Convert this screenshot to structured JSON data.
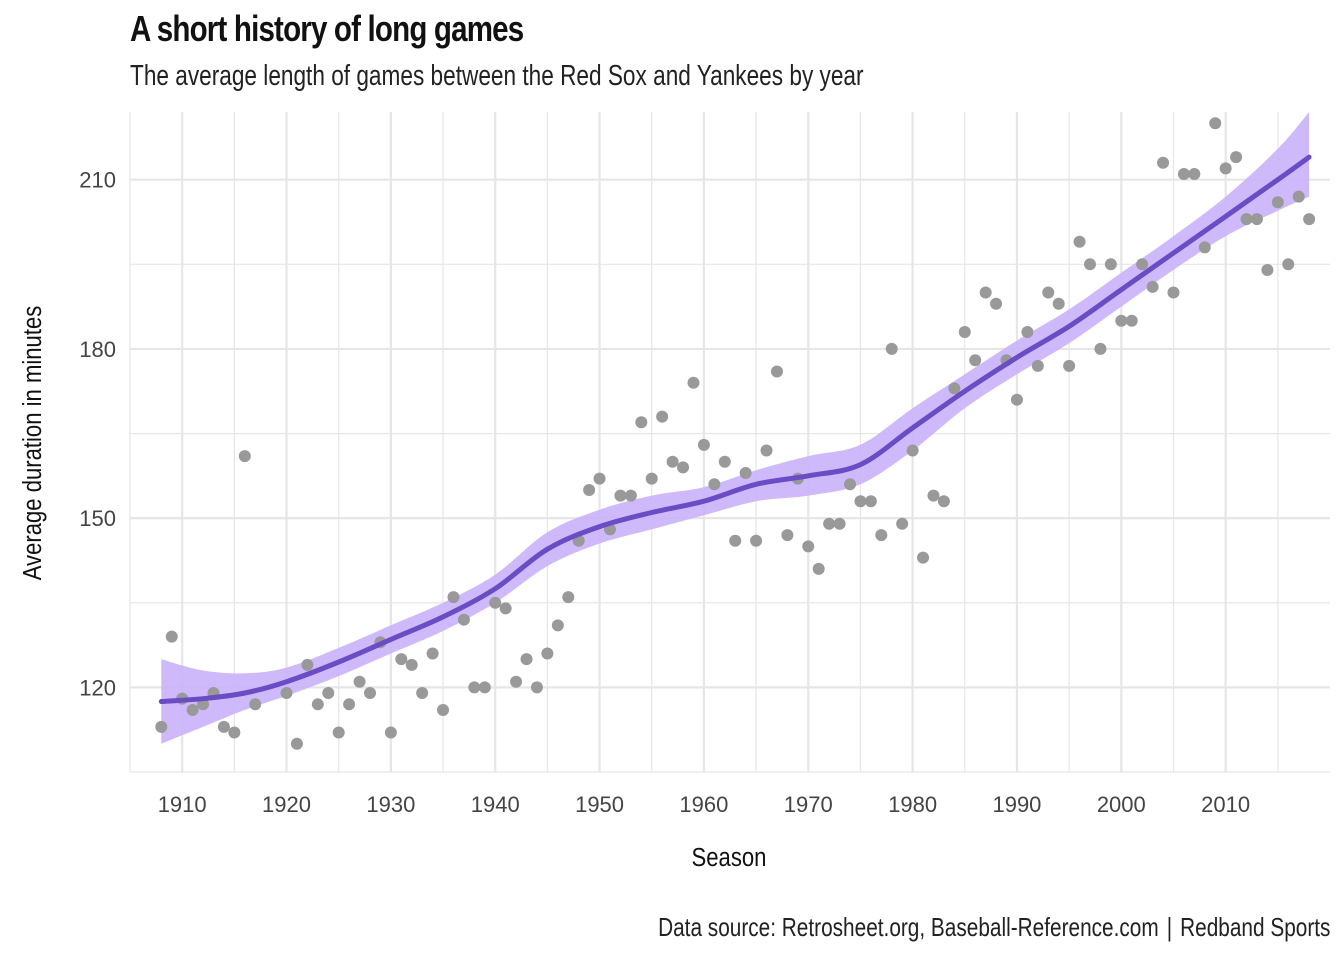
{
  "chart_data": {
    "type": "scatter",
    "title": "A short history of long games",
    "subtitle": "The average length of games between the Red Sox and Yankees by year",
    "xlabel": "Season",
    "ylabel": "Average duration in minutes",
    "caption_source": "Data source: Retrosheet.org, Baseball-Reference.com",
    "caption_separator": "|",
    "caption_brand": "Redband Sports",
    "xlim": [
      1905,
      2020
    ],
    "ylim": [
      105,
      222
    ],
    "x_ticks": [
      1910,
      1920,
      1930,
      1940,
      1950,
      1960,
      1970,
      1980,
      1990,
      2000,
      2010
    ],
    "y_ticks": [
      120,
      150,
      180,
      210
    ],
    "grid": true,
    "colors": {
      "points": "#999999",
      "trend_line": "#6a4cc4",
      "confidence_band": "#c9b3fb",
      "grid": "#e6e6e6"
    },
    "points": [
      {
        "x": 1908,
        "y": 113
      },
      {
        "x": 1909,
        "y": 129
      },
      {
        "x": 1910,
        "y": 118
      },
      {
        "x": 1911,
        "y": 116
      },
      {
        "x": 1912,
        "y": 117
      },
      {
        "x": 1913,
        "y": 119
      },
      {
        "x": 1914,
        "y": 113
      },
      {
        "x": 1915,
        "y": 112
      },
      {
        "x": 1916,
        "y": 161
      },
      {
        "x": 1917,
        "y": 117
      },
      {
        "x": 1920,
        "y": 119
      },
      {
        "x": 1921,
        "y": 110
      },
      {
        "x": 1922,
        "y": 124
      },
      {
        "x": 1923,
        "y": 117
      },
      {
        "x": 1924,
        "y": 119
      },
      {
        "x": 1925,
        "y": 112
      },
      {
        "x": 1926,
        "y": 117
      },
      {
        "x": 1927,
        "y": 121
      },
      {
        "x": 1928,
        "y": 119
      },
      {
        "x": 1929,
        "y": 128
      },
      {
        "x": 1930,
        "y": 112
      },
      {
        "x": 1931,
        "y": 125
      },
      {
        "x": 1932,
        "y": 124
      },
      {
        "x": 1933,
        "y": 119
      },
      {
        "x": 1934,
        "y": 126
      },
      {
        "x": 1935,
        "y": 116
      },
      {
        "x": 1936,
        "y": 136
      },
      {
        "x": 1937,
        "y": 132
      },
      {
        "x": 1938,
        "y": 120
      },
      {
        "x": 1939,
        "y": 120
      },
      {
        "x": 1940,
        "y": 135
      },
      {
        "x": 1941,
        "y": 134
      },
      {
        "x": 1942,
        "y": 121
      },
      {
        "x": 1943,
        "y": 125
      },
      {
        "x": 1944,
        "y": 120
      },
      {
        "x": 1945,
        "y": 126
      },
      {
        "x": 1946,
        "y": 131
      },
      {
        "x": 1947,
        "y": 136
      },
      {
        "x": 1948,
        "y": 146
      },
      {
        "x": 1949,
        "y": 155
      },
      {
        "x": 1950,
        "y": 157
      },
      {
        "x": 1951,
        "y": 148
      },
      {
        "x": 1952,
        "y": 154
      },
      {
        "x": 1953,
        "y": 154
      },
      {
        "x": 1954,
        "y": 167
      },
      {
        "x": 1955,
        "y": 157
      },
      {
        "x": 1956,
        "y": 168
      },
      {
        "x": 1957,
        "y": 160
      },
      {
        "x": 1958,
        "y": 159
      },
      {
        "x": 1959,
        "y": 174
      },
      {
        "x": 1960,
        "y": 163
      },
      {
        "x": 1961,
        "y": 156
      },
      {
        "x": 1962,
        "y": 160
      },
      {
        "x": 1963,
        "y": 146
      },
      {
        "x": 1964,
        "y": 158
      },
      {
        "x": 1965,
        "y": 146
      },
      {
        "x": 1966,
        "y": 162
      },
      {
        "x": 1967,
        "y": 176
      },
      {
        "x": 1968,
        "y": 147
      },
      {
        "x": 1969,
        "y": 157
      },
      {
        "x": 1970,
        "y": 145
      },
      {
        "x": 1971,
        "y": 141
      },
      {
        "x": 1972,
        "y": 149
      },
      {
        "x": 1973,
        "y": 149
      },
      {
        "x": 1974,
        "y": 156
      },
      {
        "x": 1975,
        "y": 153
      },
      {
        "x": 1976,
        "y": 153
      },
      {
        "x": 1977,
        "y": 147
      },
      {
        "x": 1978,
        "y": 180
      },
      {
        "x": 1979,
        "y": 149
      },
      {
        "x": 1980,
        "y": 162
      },
      {
        "x": 1981,
        "y": 143
      },
      {
        "x": 1982,
        "y": 154
      },
      {
        "x": 1983,
        "y": 153
      },
      {
        "x": 1984,
        "y": 173
      },
      {
        "x": 1985,
        "y": 183
      },
      {
        "x": 1986,
        "y": 178
      },
      {
        "x": 1987,
        "y": 190
      },
      {
        "x": 1988,
        "y": 188
      },
      {
        "x": 1989,
        "y": 178
      },
      {
        "x": 1990,
        "y": 171
      },
      {
        "x": 1991,
        "y": 183
      },
      {
        "x": 1992,
        "y": 177
      },
      {
        "x": 1993,
        "y": 190
      },
      {
        "x": 1994,
        "y": 188
      },
      {
        "x": 1995,
        "y": 177
      },
      {
        "x": 1996,
        "y": 199
      },
      {
        "x": 1997,
        "y": 195
      },
      {
        "x": 1998,
        "y": 180
      },
      {
        "x": 1999,
        "y": 195
      },
      {
        "x": 2000,
        "y": 185
      },
      {
        "x": 2001,
        "y": 185
      },
      {
        "x": 2002,
        "y": 195
      },
      {
        "x": 2003,
        "y": 191
      },
      {
        "x": 2004,
        "y": 213
      },
      {
        "x": 2005,
        "y": 190
      },
      {
        "x": 2006,
        "y": 211
      },
      {
        "x": 2007,
        "y": 211
      },
      {
        "x": 2008,
        "y": 198
      },
      {
        "x": 2009,
        "y": 220
      },
      {
        "x": 2010,
        "y": 212
      },
      {
        "x": 2011,
        "y": 214
      },
      {
        "x": 2012,
        "y": 203
      },
      {
        "x": 2013,
        "y": 203
      },
      {
        "x": 2014,
        "y": 194
      },
      {
        "x": 2015,
        "y": 206
      },
      {
        "x": 2016,
        "y": 195
      },
      {
        "x": 2017,
        "y": 207
      },
      {
        "x": 2018,
        "y": 203
      }
    ],
    "trend": {
      "x": [
        1908,
        1912,
        1916,
        1920,
        1925,
        1930,
        1935,
        1940,
        1945,
        1950,
        1955,
        1960,
        1965,
        1970,
        1975,
        1980,
        1985,
        1990,
        1995,
        2000,
        2005,
        2010,
        2015,
        2018
      ],
      "y": [
        117.5,
        118,
        119,
        121,
        124.5,
        128.5,
        132.5,
        137.5,
        144.5,
        148.5,
        151,
        153,
        156,
        157.5,
        159.5,
        166,
        172.5,
        178.5,
        184,
        190.5,
        197,
        203.5,
        210,
        214
      ],
      "lower": [
        110,
        113,
        116,
        118.5,
        122,
        126,
        130,
        135,
        141.5,
        145.5,
        148,
        150.5,
        153,
        154,
        156,
        162,
        169.5,
        175.5,
        181,
        187.5,
        194,
        200,
        204.5,
        207
      ],
      "upper": [
        125,
        123,
        122.5,
        123.5,
        127,
        131,
        135,
        140,
        147.5,
        151.5,
        154,
        155.5,
        158.5,
        161,
        163,
        169.5,
        175.5,
        181.5,
        187,
        193.5,
        200,
        207,
        215.5,
        222
      ]
    }
  }
}
